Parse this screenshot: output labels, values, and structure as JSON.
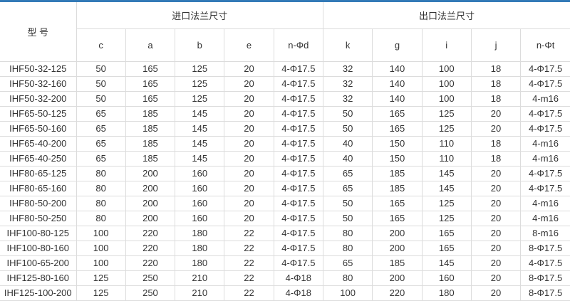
{
  "colors": {
    "accent": "#337ab7",
    "border": "#dcdcdc",
    "text": "#333333"
  },
  "table": {
    "header": {
      "model_label": "型 号",
      "inlet_group": "进口法兰尺寸",
      "outlet_group": "出口法兰尺寸",
      "sub_columns": [
        "c",
        "a",
        "b",
        "e",
        "n-Φd",
        "k",
        "g",
        "i",
        "j",
        "n-Φt"
      ]
    },
    "rows": [
      [
        "IHF50-32-125",
        "50",
        "165",
        "125",
        "20",
        "4-Φ17.5",
        "32",
        "140",
        "100",
        "18",
        "4-Φ17.5"
      ],
      [
        "IHF50-32-160",
        "50",
        "165",
        "125",
        "20",
        "4-Φ17.5",
        "32",
        "140",
        "100",
        "18",
        "4-Φ17.5"
      ],
      [
        "IHF50-32-200",
        "50",
        "165",
        "125",
        "20",
        "4-Φ17.5",
        "32",
        "140",
        "100",
        "18",
        "4-m16"
      ],
      [
        "IHF65-50-125",
        "65",
        "185",
        "145",
        "20",
        "4-Φ17.5",
        "50",
        "165",
        "125",
        "20",
        "4-Φ17.5"
      ],
      [
        "IHF65-50-160",
        "65",
        "185",
        "145",
        "20",
        "4-Φ17.5",
        "50",
        "165",
        "125",
        "20",
        "4-Φ17.5"
      ],
      [
        "IHF65-40-200",
        "65",
        "185",
        "145",
        "20",
        "4-Φ17.5",
        "40",
        "150",
        "110",
        "18",
        "4-m16"
      ],
      [
        "IHF65-40-250",
        "65",
        "185",
        "145",
        "20",
        "4-Φ17.5",
        "40",
        "150",
        "110",
        "18",
        "4-m16"
      ],
      [
        "IHF80-65-125",
        "80",
        "200",
        "160",
        "20",
        "4-Φ17.5",
        "65",
        "185",
        "145",
        "20",
        "4-Φ17.5"
      ],
      [
        "IHF80-65-160",
        "80",
        "200",
        "160",
        "20",
        "4-Φ17.5",
        "65",
        "185",
        "145",
        "20",
        "4-Φ17.5"
      ],
      [
        "IHF80-50-200",
        "80",
        "200",
        "160",
        "20",
        "4-Φ17.5",
        "50",
        "165",
        "125",
        "20",
        "4-m16"
      ],
      [
        "IHF80-50-250",
        "80",
        "200",
        "160",
        "20",
        "4-Φ17.5",
        "50",
        "165",
        "125",
        "20",
        "4-m16"
      ],
      [
        "IHF100-80-125",
        "100",
        "220",
        "180",
        "22",
        "4-Φ17.5",
        "80",
        "200",
        "165",
        "20",
        "8-m16"
      ],
      [
        "IHF100-80-160",
        "100",
        "220",
        "180",
        "22",
        "4-Φ17.5",
        "80",
        "200",
        "165",
        "20",
        "8-Φ17.5"
      ],
      [
        "IHF100-65-200",
        "100",
        "220",
        "180",
        "22",
        "4-Φ17.5",
        "65",
        "185",
        "145",
        "20",
        "4-Φ17.5"
      ],
      [
        "IHF125-80-160",
        "125",
        "250",
        "210",
        "22",
        "4-Φ18",
        "80",
        "200",
        "160",
        "20",
        "8-Φ17.5"
      ],
      [
        "IHF125-100-200",
        "125",
        "250",
        "210",
        "22",
        "4-Φ18",
        "100",
        "220",
        "180",
        "20",
        "8-Φ17.5"
      ]
    ]
  }
}
